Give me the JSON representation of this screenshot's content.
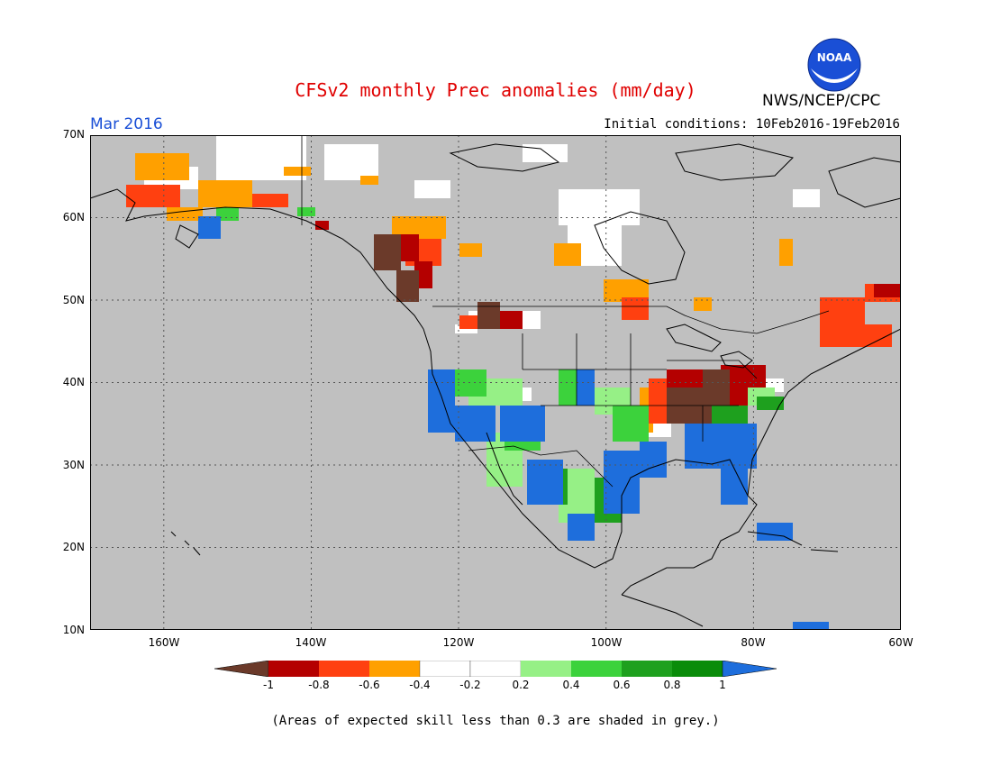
{
  "header": {
    "title": "CFSv2 monthly Prec anomalies (mm/day)",
    "agency": "NWS/NCEP/CPC",
    "logo_text": "NOAA",
    "month": "Mar 2016",
    "initial_conditions": "Initial conditions: 10Feb2016-19Feb2016"
  },
  "axes": {
    "lat_labels": [
      "70N",
      "60N",
      "50N",
      "40N",
      "30N",
      "20N",
      "10N"
    ],
    "lon_labels": [
      "160W",
      "140W",
      "120W",
      "100W",
      "80W",
      "60W"
    ]
  },
  "legend": {
    "labels": [
      "-1",
      "-0.8",
      "-0.6",
      "-0.4",
      "-0.2",
      "0.2",
      "0.4",
      "0.6",
      "0.8",
      "1"
    ],
    "colors": [
      "#6b3a2a",
      "#b40000",
      "#ff4010",
      "#ffa000",
      "#ffffff",
      "#96f086",
      "#3cd23c",
      "#1ea01e",
      "#0a8c0a",
      "#1e6edc"
    ]
  },
  "footnote": "(Areas of expected skill less than 0.3 are shaded in grey.)",
  "map_style": {
    "background": "#c0c0c0",
    "line_color": "#000000"
  }
}
